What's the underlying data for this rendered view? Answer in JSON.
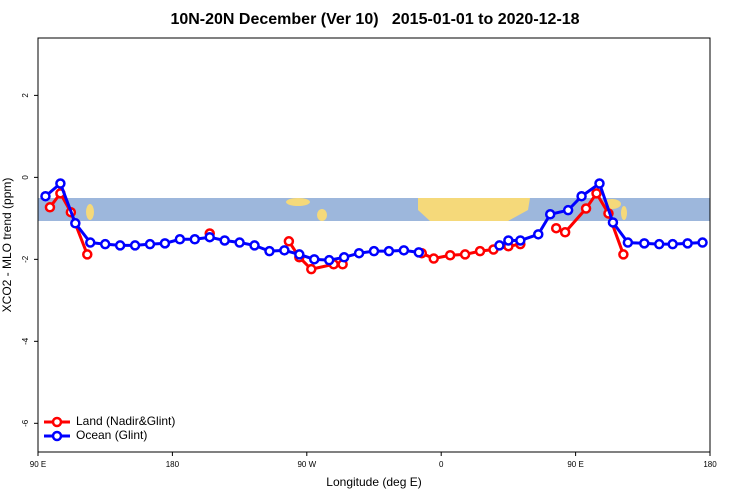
{
  "chart_data": {
    "type": "line",
    "title": "10N-20N December (Ver 10)   2015-01-01 to 2020-12-18",
    "x_label": "Longitude (deg E)",
    "y_label": "XCO2 - MLO trend (ppm)",
    "xlim": [
      90,
      540
    ],
    "xticks": [
      {
        "value": 90,
        "label": "90 E"
      },
      {
        "value": 180,
        "label": "180"
      },
      {
        "value": 270,
        "label": "90 W"
      },
      {
        "value": 360,
        "label": "0"
      },
      {
        "value": 450,
        "label": "90 E"
      },
      {
        "value": 540,
        "label": "180"
      }
    ],
    "ylim": [
      -6.7,
      3.4
    ],
    "yticks": [
      -6,
      -4,
      -2,
      0,
      2
    ],
    "legend": "bottom-left",
    "series": [
      {
        "name": "Land (Nadir&Glint)",
        "color": "#ff0000",
        "x": [
          98,
          105,
          112,
          123,
          null,
          205,
          null,
          258,
          265,
          273,
          288,
          294,
          null,
          347,
          355,
          366,
          376,
          386,
          395,
          405,
          413,
          null,
          437,
          443,
          457,
          464,
          472,
          482
        ],
        "values": [
          -0.73,
          -0.39,
          -0.85,
          -1.88,
          null,
          -1.37,
          null,
          -1.56,
          -1.95,
          -2.24,
          -2.12,
          -2.12,
          null,
          -1.85,
          -1.98,
          -1.9,
          -1.88,
          -1.8,
          -1.76,
          -1.68,
          -1.63,
          null,
          -1.24,
          -1.34,
          -0.76,
          -0.39,
          -0.88,
          -1.88
        ]
      },
      {
        "name": "Ocean (Glint)",
        "color": "#0000ff",
        "x": [
          95,
          105,
          115,
          125,
          135,
          145,
          155,
          165,
          175,
          185,
          195,
          205,
          215,
          225,
          235,
          245,
          255,
          265,
          275,
          285,
          295,
          305,
          315,
          325,
          335,
          345,
          null,
          399,
          405,
          413,
          425,
          433,
          445,
          454,
          466,
          475,
          485,
          496,
          506,
          515,
          525,
          535
        ],
        "values": [
          -0.46,
          -0.15,
          -1.12,
          -1.59,
          -1.63,
          -1.66,
          -1.66,
          -1.63,
          -1.61,
          -1.51,
          -1.51,
          -1.46,
          -1.54,
          -1.59,
          -1.66,
          -1.8,
          -1.78,
          -1.88,
          -2.0,
          -2.02,
          -1.95,
          -1.85,
          -1.8,
          -1.8,
          -1.78,
          -1.83,
          null,
          -1.66,
          -1.54,
          -1.54,
          -1.39,
          -0.9,
          -0.8,
          -0.46,
          -0.15,
          -1.1,
          -1.59,
          -1.61,
          -1.63,
          -1.63,
          -1.61,
          -1.59
        ]
      }
    ]
  }
}
